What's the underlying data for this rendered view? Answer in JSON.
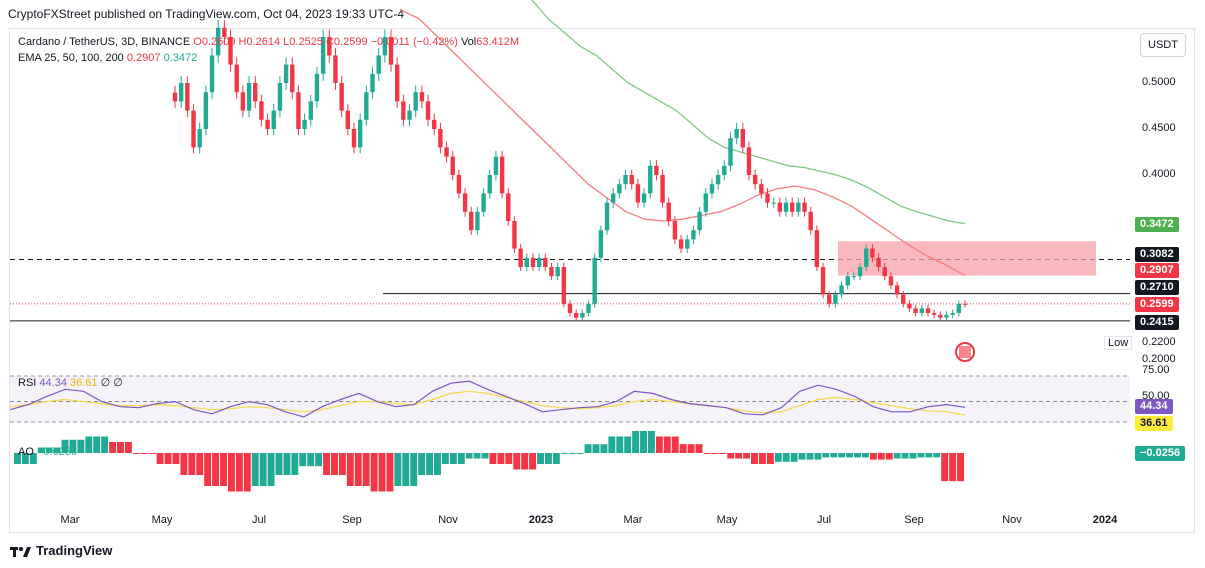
{
  "header": {
    "publisher_line": "CryptoFXStreet published on TradingView.com, Oct 04, 2023 19:33 UTC-4"
  },
  "legend": {
    "symbol": "Cardano / TetherUS, 3D, BINANCE",
    "ohlc": "O0.2609 H0.2614 L0.2525 C0.2599 −0.0011 (−0.42%)",
    "vol_label": "Vol",
    "vol_value": "63.412M",
    "ema_label": "EMA 25, 50, 100, 200",
    "ema_val1": "0.2907",
    "ema_val2": "0.3472"
  },
  "currency_button": "USDT",
  "badges": {
    "ema100": "0.3472",
    "upper_level": "0.3082",
    "ema50": "0.2907",
    "mid_level": "0.2710",
    "last_price": "0.2599",
    "support": "0.2415",
    "low_label": "Low",
    "low_value": "0.2200",
    "rsi": "44.34",
    "rsi_ma": "36.61",
    "ao": "−0.0256"
  },
  "rsi_legend": {
    "name": "RSI",
    "value": "44.34",
    "ma": "36.61",
    "extra": "∅ ∅"
  },
  "ao_legend": {
    "name": "AO",
    "value": "−0.0256"
  },
  "rsi_axis": {
    "upper": "75.00",
    "mid": "50.00"
  },
  "footer": {
    "brand": "TradingView"
  },
  "colors": {
    "up": "#22ab94",
    "down": "#f23645",
    "ema50": "#f77c80",
    "ema100": "#81c784",
    "zone": "#f7a1a9",
    "rsi": "#7e57c2",
    "rsi_ma": "#f5d94a"
  },
  "chart_data": {
    "type": "candlestick",
    "title": "Cardano / TetherUS, 3D, BINANCE",
    "y_axis": {
      "ticks": [
        "0.5000",
        "0.4500",
        "0.4000",
        "0.2000"
      ],
      "ylim": [
        0.19,
        0.56
      ]
    },
    "x_axis": {
      "ticks": [
        "Mar",
        "May",
        "Jul",
        "Sep",
        "Nov",
        "2023",
        "Mar",
        "May",
        "Jul",
        "Sep",
        "Nov",
        "2024"
      ]
    },
    "price_series": [
      0.48,
      0.5,
      0.47,
      0.43,
      0.45,
      0.49,
      0.53,
      0.56,
      0.55,
      0.52,
      0.49,
      0.47,
      0.5,
      0.48,
      0.46,
      0.45,
      0.47,
      0.5,
      0.52,
      0.49,
      0.45,
      0.46,
      0.48,
      0.51,
      0.55,
      0.53,
      0.5,
      0.47,
      0.45,
      0.43,
      0.46,
      0.49,
      0.51,
      0.53,
      0.55,
      0.52,
      0.48,
      0.46,
      0.47,
      0.49,
      0.48,
      0.46,
      0.45,
      0.43,
      0.42,
      0.4,
      0.38,
      0.36,
      0.34,
      0.36,
      0.38,
      0.4,
      0.42,
      0.38,
      0.35,
      0.32,
      0.3,
      0.31,
      0.3,
      0.31,
      0.3,
      0.29,
      0.3,
      0.26,
      0.25,
      0.245,
      0.25,
      0.26,
      0.31,
      0.34,
      0.37,
      0.38,
      0.39,
      0.4,
      0.39,
      0.37,
      0.38,
      0.41,
      0.4,
      0.37,
      0.35,
      0.33,
      0.32,
      0.33,
      0.34,
      0.36,
      0.38,
      0.39,
      0.4,
      0.41,
      0.44,
      0.45,
      0.43,
      0.4,
      0.39,
      0.38,
      0.37,
      0.37,
      0.36,
      0.37,
      0.36,
      0.37,
      0.36,
      0.34,
      0.3,
      0.27,
      0.26,
      0.27,
      0.28,
      0.29,
      0.29,
      0.3,
      0.32,
      0.31,
      0.3,
      0.29,
      0.28,
      0.27,
      0.26,
      0.255,
      0.25,
      0.255,
      0.25,
      0.248,
      0.245,
      0.248,
      0.25,
      0.26,
      0.2599
    ],
    "levels": [
      {
        "name": "resistance",
        "value": 0.3082,
        "style": "dashed"
      },
      {
        "name": "mid",
        "value": 0.271,
        "style": "solid"
      },
      {
        "name": "support",
        "value": 0.2415,
        "style": "solid"
      }
    ],
    "supply_zone": {
      "low": 0.2907,
      "high": 0.328
    },
    "ema_50": [
      0.58,
      0.57,
      0.55,
      0.53,
      0.51,
      0.49,
      0.47,
      0.45,
      0.43,
      0.41,
      0.39,
      0.375,
      0.36,
      0.352,
      0.35,
      0.352,
      0.356,
      0.36,
      0.368,
      0.378,
      0.385,
      0.388,
      0.384,
      0.376,
      0.366,
      0.352,
      0.338,
      0.324,
      0.312,
      0.302,
      0.2907
    ],
    "ema_100": [
      0.62,
      0.61,
      0.59,
      0.57,
      0.555,
      0.54,
      0.53,
      0.515,
      0.5,
      0.49,
      0.48,
      0.47,
      0.455,
      0.44,
      0.43,
      0.425,
      0.42,
      0.415,
      0.41,
      0.408,
      0.404,
      0.4,
      0.394,
      0.386,
      0.376,
      0.366,
      0.36,
      0.355,
      0.35,
      0.3472
    ],
    "rsi": {
      "values": [
        42,
        47,
        55,
        62,
        60,
        50,
        45,
        44,
        48,
        50,
        42,
        38,
        45,
        50,
        47,
        40,
        35,
        45,
        52,
        58,
        50,
        45,
        47,
        60,
        68,
        70,
        62,
        55,
        48,
        40,
        42,
        44,
        45,
        50,
        60,
        58,
        52,
        48,
        46,
        44,
        38,
        37,
        44,
        60,
        66,
        62,
        55,
        45,
        40,
        40,
        45,
        47,
        44.34
      ],
      "ma_values": [
        45,
        47,
        50,
        52,
        50,
        48,
        46,
        46,
        47,
        46,
        44,
        42,
        43,
        45,
        44,
        42,
        40,
        42,
        46,
        50,
        50,
        48,
        47,
        52,
        58,
        60,
        58,
        54,
        50,
        46,
        44,
        43,
        44,
        46,
        50,
        52,
        50,
        48,
        46,
        44,
        41,
        39,
        40,
        46,
        52,
        54,
        52,
        49,
        46,
        43,
        41,
        40,
        36.61
      ],
      "upper": 75,
      "mid": 50
    },
    "ao": [
      -0.01,
      0.005,
      0.012,
      0.015,
      0.01,
      0.0,
      -0.01,
      -0.02,
      -0.03,
      -0.035,
      -0.03,
      -0.02,
      -0.012,
      -0.02,
      -0.03,
      -0.035,
      -0.03,
      -0.02,
      -0.01,
      -0.005,
      -0.01,
      -0.015,
      -0.01,
      0.0,
      0.008,
      0.015,
      0.02,
      0.015,
      0.008,
      0.0,
      -0.005,
      -0.01,
      -0.008,
      -0.006,
      -0.004,
      -0.004,
      -0.006,
      -0.005,
      -0.004,
      -0.0256
    ]
  }
}
